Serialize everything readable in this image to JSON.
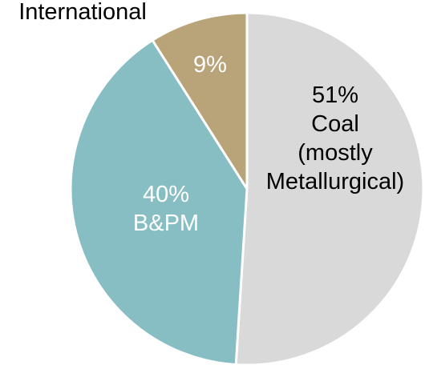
{
  "chart_data": {
    "type": "pie",
    "start_angle_deg": 0,
    "direction": "clockwise",
    "slices": [
      {
        "value": 51,
        "pct_label": "51%",
        "category_lines": [
          "Coal",
          "(mostly",
          "Metallurgical)"
        ],
        "color": "#d9d9d9",
        "label_color": "#000000"
      },
      {
        "value": 40,
        "pct_label": "40%",
        "category_lines": [
          "B&PM"
        ],
        "color": "#86bec3",
        "label_color": "#ffffff"
      },
      {
        "value": 9,
        "pct_label": "9%",
        "category_lines": [
          "International"
        ],
        "color": "#b9a479",
        "label_color": "#ffffff",
        "category_label_outside": true,
        "outside_label_color": "#000000"
      }
    ],
    "slice_border_color": "#ffffff"
  }
}
